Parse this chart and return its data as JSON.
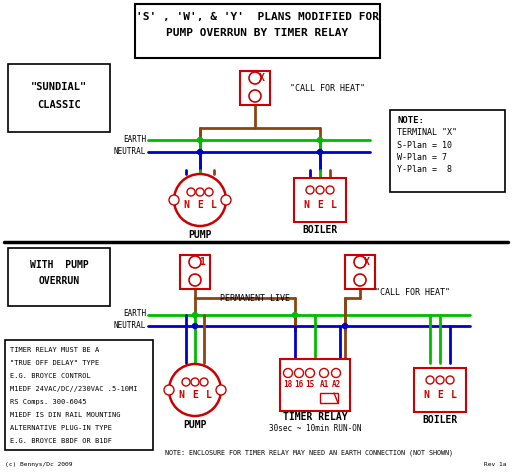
{
  "bg_color": "#ffffff",
  "red": "#cc0000",
  "green": "#00bb00",
  "blue": "#0000cc",
  "brown": "#8B4513",
  "black": "#000000",
  "title_line1": "'S' , 'W', & 'Y'  PLANS MODIFIED FOR",
  "title_line2": "PUMP OVERRUN BY TIMER RELAY",
  "sundial_line1": "\"SUNDIAL\"",
  "sundial_line2": "CLASSIC",
  "with_pump_line1": "WITH  PUMP",
  "with_pump_line2": "OVERRUN",
  "call_for_heat": "\"CALL FOR HEAT\"",
  "permanent_live": "PERMANENT LIVE",
  "earth_label": "EARTH",
  "neutral_label": "NEUTRAL",
  "pump_label": "PUMP",
  "boiler_label": "BOILER",
  "timer_relay_label": "TIMER RELAY",
  "timer_relay_sub": "30sec ~ 10min RUN-ON",
  "note_title": "NOTE:",
  "note_line1": "TERMINAL \"X\"",
  "note_line2": "S-Plan = 10",
  "note_line3": "W-Plan = 7",
  "note_line4": "Y-Plan =  8",
  "bottom_note": "NOTE: ENCLOSURE FOR TIMER RELAY MAY NEED AN EARTH CONNECTION (NOT SHOWN)",
  "info_lines": [
    "TIMER RELAY MUST BE A",
    "\"TRUE OFF DELAY\" TYPE",
    "E.G. BROYCE CONTROL",
    "M1EDF 24VAC/DC//230VAC .5-10MI",
    "RS Comps. 300-6045",
    "M1EDF IS DIN RAIL MOUNTING",
    "ALTERNATIVE PLUG-IN TYPE",
    "E.G. BROYCE B8DF OR B1DF"
  ],
  "copyright": "(c) Bennys/Dc 2009",
  "rev": "Rev 1a"
}
